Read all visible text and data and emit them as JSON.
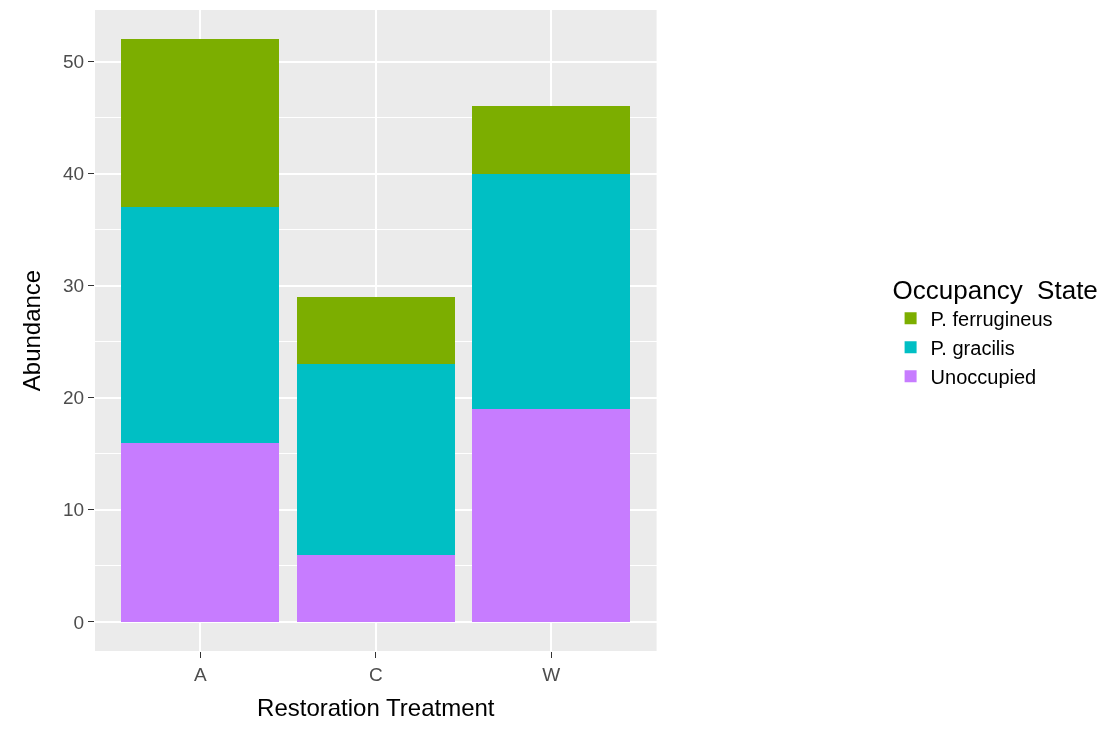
{
  "chart_data": {
    "type": "bar",
    "stacked": true,
    "xlabel": "Restoration Treatment",
    "ylabel": "Abundance",
    "legend_title": "Occupancy  State",
    "categories": [
      "A",
      "C",
      "W"
    ],
    "series": [
      {
        "name": "Unoccupied",
        "color": "#c77cff",
        "values": [
          16,
          6,
          19
        ]
      },
      {
        "name": "P. gracilis",
        "color": "#00bfc4",
        "values": [
          21,
          17,
          21
        ]
      },
      {
        "name": "P. ferrugineus",
        "color": "#7cae00",
        "values": [
          15,
          6,
          6
        ]
      }
    ],
    "ylim": [
      -2.6,
      54.6
    ],
    "yticks": [
      0,
      10,
      20,
      30,
      40,
      50
    ],
    "grid": true,
    "legend": "right"
  }
}
